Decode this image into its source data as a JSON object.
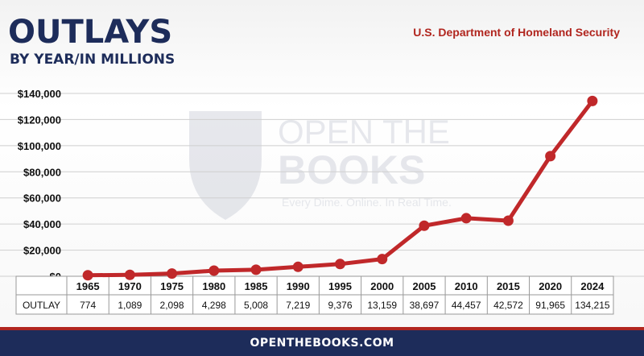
{
  "header": {
    "title": "OUTLAYS",
    "subtitle": "BY YEAR/IN MILLIONS",
    "agency": "U.S. Department of Homeland Security"
  },
  "watermark": {
    "line1": "OPEN THE",
    "line2": "BOOKS",
    "tagline": "Every Dime. Online. In Real Time."
  },
  "footer": {
    "site": "OPENTHEBOOKS.COM"
  },
  "colors": {
    "navy": "#1d2c5a",
    "red": "#b1261f",
    "line": "#c0282a"
  },
  "table": {
    "row_label": "OUTLAY",
    "values": [
      "774",
      "1,089",
      "2,098",
      "4,298",
      "5,008",
      "7,219",
      "9,376",
      "13,159",
      "38,697",
      "44,457",
      "42,572",
      "91,965",
      "134,215"
    ]
  },
  "chart_data": {
    "type": "line",
    "categories": [
      "1965",
      "1970",
      "1975",
      "1980",
      "1985",
      "1990",
      "1995",
      "2000",
      "2005",
      "2010",
      "2015",
      "2020",
      "2024"
    ],
    "series": [
      {
        "values": [
          774,
          1089,
          2098,
          4298,
          5008,
          7219,
          9376,
          13159,
          38697,
          44457,
          42572,
          91965,
          134215
        ]
      }
    ],
    "ylim": [
      0,
      140000
    ],
    "yticks": [
      0,
      20000,
      40000,
      60000,
      80000,
      100000,
      120000,
      140000
    ],
    "ytick_labels": [
      "$0",
      "$20,000",
      "$40,000",
      "$60,000",
      "$80,000",
      "$100,000",
      "$120,000",
      "$140,000"
    ],
    "grid": true
  }
}
